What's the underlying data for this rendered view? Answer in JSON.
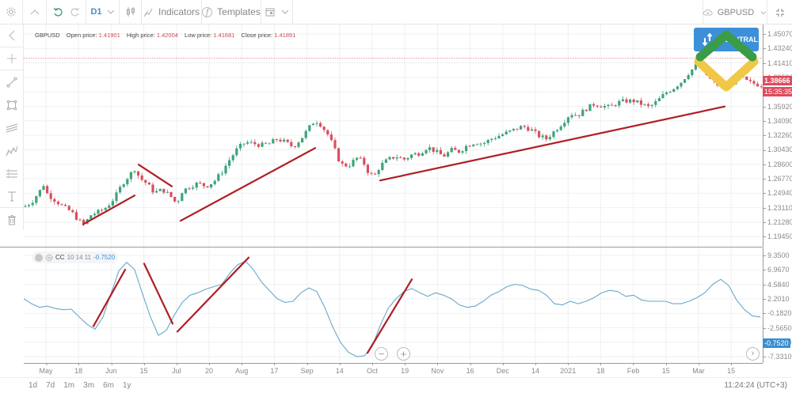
{
  "toolbar": {
    "timeframe": "D1",
    "indicators_label": "Indicators",
    "templates_label": "Templates",
    "symbol": "GBPUSD"
  },
  "price_info": {
    "symbol": "GBPUSD",
    "open_label": "Open price:",
    "open": "1.41901",
    "high_label": "High price:",
    "high": "1.42004",
    "low_label": "Low price:",
    "low": "1.41681",
    "close_label": "Close price:",
    "close": "1.41891"
  },
  "main_axis": {
    "ticks": [
      "1.45070",
      "1.43240",
      "1.41410",
      "1.39580",
      "1.37750",
      "1.35920",
      "1.34090",
      "1.32260",
      "1.30430",
      "1.28600",
      "1.26770",
      "1.24940",
      "1.23110",
      "1.21280",
      "1.19450"
    ],
    "current_price": "1.38666",
    "countdown": "15:35:35"
  },
  "indicator": {
    "name": "CC",
    "params": "10 14 11",
    "value": "-0.7520",
    "ticks": [
      "9.3500",
      "6.9670",
      "4.5840",
      "2.2010",
      "-0.1820",
      "-2.5650",
      "-4.9480",
      "-7.3310"
    ]
  },
  "xaxis": {
    "labels": [
      "May",
      "18",
      "Jun",
      "15",
      "Jul",
      "20",
      "Aug",
      "17",
      "Sep",
      "14",
      "Oct",
      "19",
      "Nov",
      "16",
      "Dec",
      "14",
      "2021",
      "18",
      "Feb",
      "15",
      "Mar",
      "15"
    ]
  },
  "ranges": [
    "1d",
    "7d",
    "1m",
    "3m",
    "6m",
    "1y"
  ],
  "clock": "11:24:24 (UTC+3)",
  "central_button_label": "CENTRAL",
  "colors": {
    "bull": "#3ea37a",
    "bear": "#d9505f",
    "trendline": "#b01e23",
    "indicator_line": "#6aa7c9",
    "price_tag": "#e04a5c",
    "indicator_tag": "#3a8fd1",
    "accent_button": "#3d8fd8",
    "logo_green": "#3b9c48",
    "logo_yellow": "#f1c845"
  },
  "chart_data": {
    "type": "candlestick",
    "symbol": "GBPUSD",
    "timeframe": "D1",
    "x_labels": [
      "May",
      "18",
      "Jun",
      "15",
      "Jul",
      "20",
      "Aug",
      "17",
      "Sep",
      "14",
      "Oct",
      "19",
      "Nov",
      "16",
      "Dec",
      "14",
      "2021",
      "18",
      "Feb",
      "15",
      "Mar",
      "15"
    ],
    "ylim": [
      1.1945,
      1.4507
    ],
    "close_path": [
      [
        0,
        1.232
      ],
      [
        10,
        1.238
      ],
      [
        20,
        1.252
      ],
      [
        25,
        1.26
      ],
      [
        30,
        1.248
      ],
      [
        40,
        1.24
      ],
      [
        50,
        1.232
      ],
      [
        60,
        1.226
      ],
      [
        70,
        1.214
      ],
      [
        76,
        1.21
      ],
      [
        85,
        1.222
      ],
      [
        95,
        1.226
      ],
      [
        105,
        1.232
      ],
      [
        115,
        1.244
      ],
      [
        125,
        1.262
      ],
      [
        135,
        1.274
      ],
      [
        140,
        1.28
      ],
      [
        147,
        1.268
      ],
      [
        155,
        1.262
      ],
      [
        165,
        1.25
      ],
      [
        175,
        1.254
      ],
      [
        185,
        1.246
      ],
      [
        193,
        1.236
      ],
      [
        200,
        1.252
      ],
      [
        210,
        1.258
      ],
      [
        220,
        1.262
      ],
      [
        230,
        1.258
      ],
      [
        240,
        1.264
      ],
      [
        250,
        1.276
      ],
      [
        260,
        1.292
      ],
      [
        270,
        1.306
      ],
      [
        280,
        1.314
      ],
      [
        290,
        1.312
      ],
      [
        300,
        1.31
      ],
      [
        310,
        1.312
      ],
      [
        320,
        1.318
      ],
      [
        330,
        1.314
      ],
      [
        340,
        1.308
      ],
      [
        350,
        1.318
      ],
      [
        360,
        1.332
      ],
      [
        368,
        1.342
      ],
      [
        375,
        1.336
      ],
      [
        385,
        1.322
      ],
      [
        392,
        1.306
      ],
      [
        400,
        1.286
      ],
      [
        410,
        1.284
      ],
      [
        420,
        1.294
      ],
      [
        428,
        1.29
      ],
      [
        435,
        1.276
      ],
      [
        442,
        1.27
      ],
      [
        450,
        1.284
      ],
      [
        460,
        1.292
      ],
      [
        470,
        1.296
      ],
      [
        480,
        1.292
      ],
      [
        490,
        1.298
      ],
      [
        500,
        1.3
      ],
      [
        510,
        1.308
      ],
      [
        520,
        1.302
      ],
      [
        530,
        1.296
      ],
      [
        540,
        1.304
      ],
      [
        550,
        1.302
      ],
      [
        560,
        1.31
      ],
      [
        570,
        1.314
      ],
      [
        580,
        1.312
      ],
      [
        590,
        1.318
      ],
      [
        600,
        1.322
      ],
      [
        610,
        1.326
      ],
      [
        620,
        1.33
      ],
      [
        630,
        1.334
      ],
      [
        640,
        1.33
      ],
      [
        650,
        1.322
      ],
      [
        660,
        1.318
      ],
      [
        670,
        1.328
      ],
      [
        680,
        1.338
      ],
      [
        690,
        1.35
      ],
      [
        700,
        1.348
      ],
      [
        710,
        1.356
      ],
      [
        720,
        1.362
      ],
      [
        730,
        1.36
      ],
      [
        740,
        1.358
      ],
      [
        750,
        1.364
      ],
      [
        760,
        1.366
      ],
      [
        770,
        1.366
      ],
      [
        780,
        1.362
      ],
      [
        790,
        1.358
      ],
      [
        800,
        1.366
      ],
      [
        810,
        1.376
      ],
      [
        820,
        1.382
      ],
      [
        830,
        1.39
      ],
      [
        840,
        1.402
      ],
      [
        850,
        1.412
      ],
      [
        858,
        1.404
      ],
      [
        866,
        1.394
      ],
      [
        874,
        1.388
      ],
      [
        882,
        1.382
      ],
      [
        890,
        1.386
      ],
      [
        898,
        1.392
      ],
      [
        906,
        1.396
      ],
      [
        914,
        1.39
      ],
      [
        922,
        1.388
      ],
      [
        930,
        1.386
      ]
    ],
    "trendlines_main": [
      [
        [
          75,
          1.21
        ],
        [
          140,
          1.2465
        ]
      ],
      [
        [
          145,
          1.2855
        ],
        [
          187,
          1.258
        ]
      ],
      [
        [
          198,
          1.2145
        ],
        [
          368,
          1.3065
        ]
      ],
      [
        [
          450,
          1.2655
        ],
        [
          885,
          1.359
        ]
      ]
    ],
    "indicator_series": [
      [
        0,
        2.2
      ],
      [
        10,
        1.4
      ],
      [
        20,
        0.8
      ],
      [
        30,
        1.0
      ],
      [
        40,
        0.6
      ],
      [
        50,
        0.4
      ],
      [
        60,
        0.5
      ],
      [
        70,
        -0.8
      ],
      [
        80,
        -2.0
      ],
      [
        90,
        -2.8
      ],
      [
        100,
        -0.8
      ],
      [
        110,
        3.0
      ],
      [
        120,
        6.8
      ],
      [
        130,
        8.2
      ],
      [
        140,
        7.0
      ],
      [
        150,
        3.0
      ],
      [
        160,
        -0.8
      ],
      [
        170,
        -3.8
      ],
      [
        180,
        -3.0
      ],
      [
        190,
        -0.5
      ],
      [
        200,
        1.6
      ],
      [
        210,
        2.8
      ],
      [
        220,
        3.2
      ],
      [
        230,
        3.8
      ],
      [
        240,
        4.2
      ],
      [
        250,
        4.6
      ],
      [
        260,
        6.4
      ],
      [
        270,
        7.8
      ],
      [
        280,
        8.4
      ],
      [
        290,
        7.0
      ],
      [
        300,
        5.0
      ],
      [
        310,
        3.6
      ],
      [
        320,
        2.2
      ],
      [
        330,
        1.6
      ],
      [
        340,
        1.8
      ],
      [
        350,
        3.2
      ],
      [
        360,
        4.0
      ],
      [
        370,
        3.4
      ],
      [
        380,
        0.8
      ],
      [
        390,
        -2.4
      ],
      [
        400,
        -5.0
      ],
      [
        410,
        -6.6
      ],
      [
        420,
        -7.3
      ],
      [
        430,
        -7.2
      ],
      [
        440,
        -5.6
      ],
      [
        450,
        -2.2
      ],
      [
        460,
        0.6
      ],
      [
        470,
        2.2
      ],
      [
        480,
        3.4
      ],
      [
        490,
        3.9
      ],
      [
        500,
        3.2
      ],
      [
        510,
        2.6
      ],
      [
        520,
        3.2
      ],
      [
        530,
        2.8
      ],
      [
        540,
        2.2
      ],
      [
        550,
        1.2
      ],
      [
        560,
        0.8
      ],
      [
        570,
        1.0
      ],
      [
        580,
        1.8
      ],
      [
        590,
        2.8
      ],
      [
        600,
        3.4
      ],
      [
        610,
        4.2
      ],
      [
        620,
        4.6
      ],
      [
        630,
        4.4
      ],
      [
        640,
        3.8
      ],
      [
        650,
        3.6
      ],
      [
        660,
        2.8
      ],
      [
        670,
        1.4
      ],
      [
        680,
        1.2
      ],
      [
        690,
        1.8
      ],
      [
        700,
        1.4
      ],
      [
        710,
        1.8
      ],
      [
        720,
        2.4
      ],
      [
        730,
        3.2
      ],
      [
        740,
        3.6
      ],
      [
        750,
        3.4
      ],
      [
        760,
        2.6
      ],
      [
        770,
        2.8
      ],
      [
        780,
        2.0
      ],
      [
        790,
        1.8
      ],
      [
        800,
        1.8
      ],
      [
        810,
        1.8
      ],
      [
        820,
        1.4
      ],
      [
        830,
        1.4
      ],
      [
        840,
        1.8
      ],
      [
        850,
        2.4
      ],
      [
        860,
        3.2
      ],
      [
        870,
        4.6
      ],
      [
        880,
        5.4
      ],
      [
        890,
        4.4
      ],
      [
        900,
        2.0
      ],
      [
        910,
        0.4
      ],
      [
        920,
        -0.6
      ],
      [
        930,
        -0.8
      ]
    ],
    "trendlines_indicator": [
      [
        [
          88,
          -2.3
        ],
        [
          128,
          7.0
        ]
      ],
      [
        [
          152,
          8.0
        ],
        [
          188,
          -1.9
        ]
      ],
      [
        [
          194,
          -3.2
        ],
        [
          284,
          9.0
        ]
      ],
      [
        [
          434,
          -6.7
        ],
        [
          490,
          5.4
        ]
      ]
    ]
  }
}
